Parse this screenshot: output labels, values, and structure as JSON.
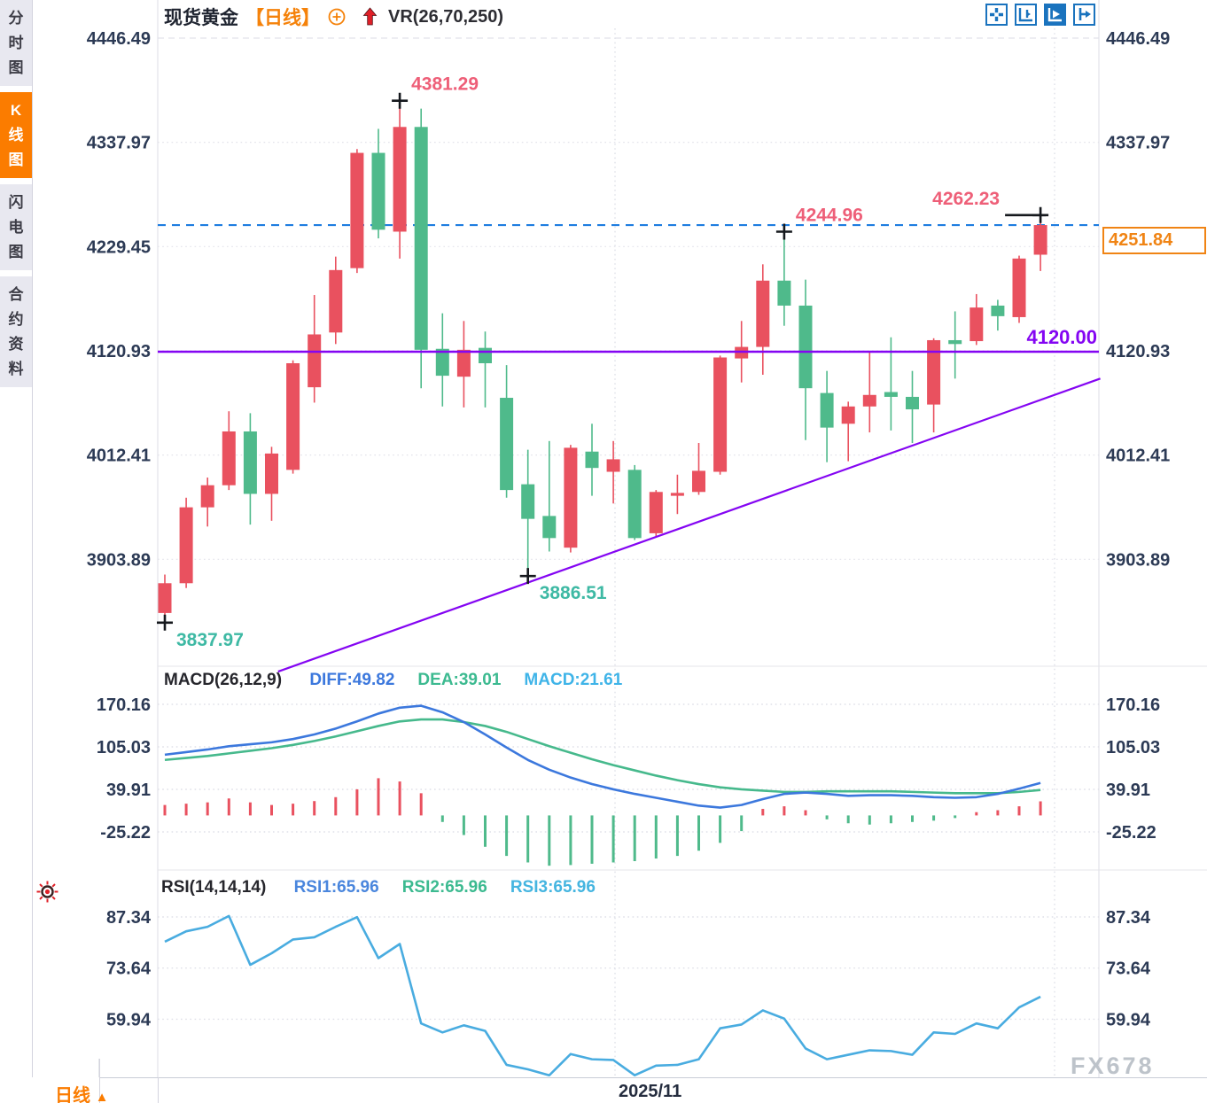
{
  "header": {
    "symbol": "现货黄金",
    "timeframe": "【日线】",
    "indicator_label": "VR(26,70,250)"
  },
  "sidebar": {
    "items": [
      {
        "label": "分时图",
        "active": false
      },
      {
        "label": "K线图",
        "active": true
      },
      {
        "label": "闪电图",
        "active": false
      },
      {
        "label": "合约资料",
        "active": false
      }
    ]
  },
  "toolbar": {
    "buttons": [
      {
        "name": "pan-tool-icon",
        "active": false
      },
      {
        "name": "fit-scale-icon",
        "active": false
      },
      {
        "name": "auto-scroll-icon",
        "active": true
      },
      {
        "name": "go-to-latest-icon",
        "active": false
      }
    ]
  },
  "price_box": {
    "value": "4251.84"
  },
  "bottom_bar": {
    "timeframe_label": "日线",
    "arrow": "▲",
    "date_label": "2025/11"
  },
  "watermark": "FX678",
  "colors": {
    "up": "#e9515f",
    "down": "#4fba8b",
    "accent_orange": "#f5820a",
    "purple": "#8405f2",
    "dashed_blue": "#1e7de0",
    "diff_line": "#3c78dd",
    "dea_line": "#46b98c",
    "macd_label": "#3fb4e8",
    "rsi_line": "#49ace0",
    "rsi1_label": "#4a86dd",
    "rsi2_label": "#3cba90",
    "rsi3_label": "#45b5e0",
    "annotation_high": "#ee5f78",
    "annotation_low": "#3eb9a4",
    "axis_text": "#2c3a55",
    "toolbar_blue": "#1a73be",
    "grid": "#dfe0e8"
  },
  "chart_data": [
    {
      "type": "candlestick",
      "title": "现货黄金 日线",
      "y_ticks": [
        4446.49,
        4337.97,
        4229.45,
        4120.93,
        4012.41,
        3903.89
      ],
      "x_tick_labels": [
        "2025/11"
      ],
      "candles": [
        [
          3848,
          3888,
          3837.97,
          3879
        ],
        [
          3879,
          3968,
          3874,
          3958
        ],
        [
          3958,
          3989,
          3938,
          3981
        ],
        [
          3981,
          4058,
          3976,
          4037
        ],
        [
          4037,
          4056,
          3940,
          3972
        ],
        [
          3972,
          4021,
          3944,
          4014
        ],
        [
          3997,
          4111,
          3993,
          4108
        ],
        [
          4083,
          4179,
          4067,
          4138
        ],
        [
          4140,
          4219,
          4128,
          4205
        ],
        [
          4207,
          4331,
          4202,
          4327
        ],
        [
          4327,
          4352,
          4238,
          4247
        ],
        [
          4245,
          4381.29,
          4217,
          4354
        ],
        [
          4354,
          4373,
          4082,
          4122
        ],
        [
          4123,
          4160,
          4063,
          4095
        ],
        [
          4094,
          4152,
          4062,
          4122
        ],
        [
          4124,
          4141,
          4062,
          4108
        ],
        [
          4072,
          4106,
          3968,
          3976
        ],
        [
          3982,
          4018,
          3886.51,
          3946
        ],
        [
          3949,
          4027,
          3912,
          3926
        ],
        [
          3916,
          4023,
          3911,
          4020
        ],
        [
          4016,
          4045,
          3970,
          3999
        ],
        [
          3995,
          4027,
          3962,
          4008
        ],
        [
          3997,
          4002,
          3924,
          3926
        ],
        [
          3931,
          3976,
          3928,
          3974
        ],
        [
          3970,
          3992,
          3951,
          3973
        ],
        [
          3974,
          4025,
          3971,
          3996
        ],
        [
          3995,
          4116,
          3992,
          4114
        ],
        [
          4113,
          4152,
          4088,
          4125
        ],
        [
          4125,
          4211,
          4096,
          4194
        ],
        [
          4194,
          4244.96,
          4147,
          4168
        ],
        [
          4168,
          4195,
          4028,
          4082
        ],
        [
          4077,
          4100,
          4005,
          4041
        ],
        [
          4045,
          4068,
          4006,
          4063
        ],
        [
          4063,
          4120,
          4036,
          4075
        ],
        [
          4078,
          4135,
          4038,
          4073
        ],
        [
          4073,
          4100,
          4025,
          4060
        ],
        [
          4065,
          4134,
          4036,
          4132
        ],
        [
          4132,
          4162,
          4092,
          4128
        ],
        [
          4131,
          4180,
          4127,
          4166
        ],
        [
          4168,
          4174,
          4142,
          4157
        ],
        [
          4156,
          4220,
          4150,
          4217
        ],
        [
          4221,
          4262.23,
          4204,
          4251.84
        ]
      ],
      "annotations": [
        {
          "text": "4381.29",
          "candle": 11,
          "at": "high",
          "color": "#ee5f78",
          "side": "right"
        },
        {
          "text": "4244.96",
          "candle": 29,
          "at": "high",
          "color": "#ee5f78",
          "side": "right"
        },
        {
          "text": "4262.23",
          "candle": 41,
          "at": "high",
          "color": "#ee5f78",
          "side": "left",
          "hbar": true
        },
        {
          "text": "3837.97",
          "candle": 0,
          "at": "low",
          "color": "#3eb9a4",
          "side": "right"
        },
        {
          "text": "3886.51",
          "candle": 17,
          "at": "low",
          "color": "#3eb9a4",
          "side": "right"
        }
      ],
      "hlines": [
        {
          "price": 4120.0,
          "label": "4120.00",
          "style": "solid",
          "color": "#8405f2"
        },
        {
          "price": 4251.84,
          "label": "",
          "style": "dashed",
          "color": "#1e7de0"
        }
      ],
      "trendline": {
        "i1": 5.3,
        "p1": 3787,
        "i2": 43.8,
        "p2": 4092,
        "color": "#8405f2"
      }
    },
    {
      "type": "macd",
      "label": "MACD(26,12,9)",
      "legend": [
        {
          "text": "DIFF:49.82",
          "color": "#3c78dd"
        },
        {
          "text": "DEA:39.01",
          "color": "#3cba90"
        },
        {
          "text": "MACD:21.61",
          "color": "#3fb4e8"
        }
      ],
      "y_ticks": [
        170.16,
        105.03,
        39.91,
        -25.22
      ],
      "diff": [
        93,
        97,
        101,
        106,
        109,
        112,
        117,
        124,
        133,
        144,
        156,
        165,
        168,
        158,
        143,
        124,
        104,
        85,
        70,
        58,
        48,
        40,
        33,
        27,
        21,
        15,
        12,
        16,
        25,
        33,
        35,
        33,
        30,
        31,
        31,
        30,
        28,
        27,
        28,
        33,
        41,
        49.82
      ],
      "dea": [
        85,
        88,
        91,
        95,
        99,
        103,
        108,
        114,
        121,
        129,
        137,
        144,
        147,
        147,
        143,
        137,
        128,
        117,
        106,
        96,
        86,
        77,
        69,
        61,
        54,
        48,
        43,
        40,
        38,
        36,
        36,
        37,
        37,
        37,
        37,
        36,
        35,
        34,
        34,
        34,
        36,
        39.01
      ],
      "hist": [
        16,
        18,
        20,
        26,
        20,
        16,
        18,
        22,
        28,
        40,
        57,
        52,
        34,
        -10,
        -30,
        -48,
        -62,
        -72,
        -77,
        -76,
        -74,
        -72,
        -70,
        -66,
        -62,
        -54,
        -42,
        -24,
        10,
        14,
        8,
        -6,
        -12,
        -14,
        -12,
        -10,
        -8,
        -4,
        5,
        8,
        14,
        21.61
      ]
    },
    {
      "type": "rsi",
      "label": "RSI(14,14,14)",
      "legend": [
        {
          "text": "RSI1:65.96",
          "color": "#4a86dd"
        },
        {
          "text": "RSI2:65.96",
          "color": "#3cba90"
        },
        {
          "text": "RSI3:65.96",
          "color": "#45b5e0"
        }
      ],
      "y_ticks": [
        87.34,
        73.64,
        59.94
      ],
      "rsi": [
        80.7,
        83.5,
        84.7,
        87.6,
        74.5,
        77.6,
        81.3,
        81.9,
        84.7,
        87.3,
        76.3,
        80.1,
        58.8,
        56.4,
        58.3,
        56.8,
        47.7,
        46.5,
        44.9,
        50.6,
        49.2,
        49.0,
        44.9,
        47.5,
        47.7,
        49.2,
        57.5,
        58.5,
        62.3,
        60.1,
        52.1,
        49.2,
        50.4,
        51.6,
        51.4,
        50.4,
        56.4,
        56.0,
        58.8,
        57.5,
        63.1,
        65.96
      ]
    }
  ]
}
